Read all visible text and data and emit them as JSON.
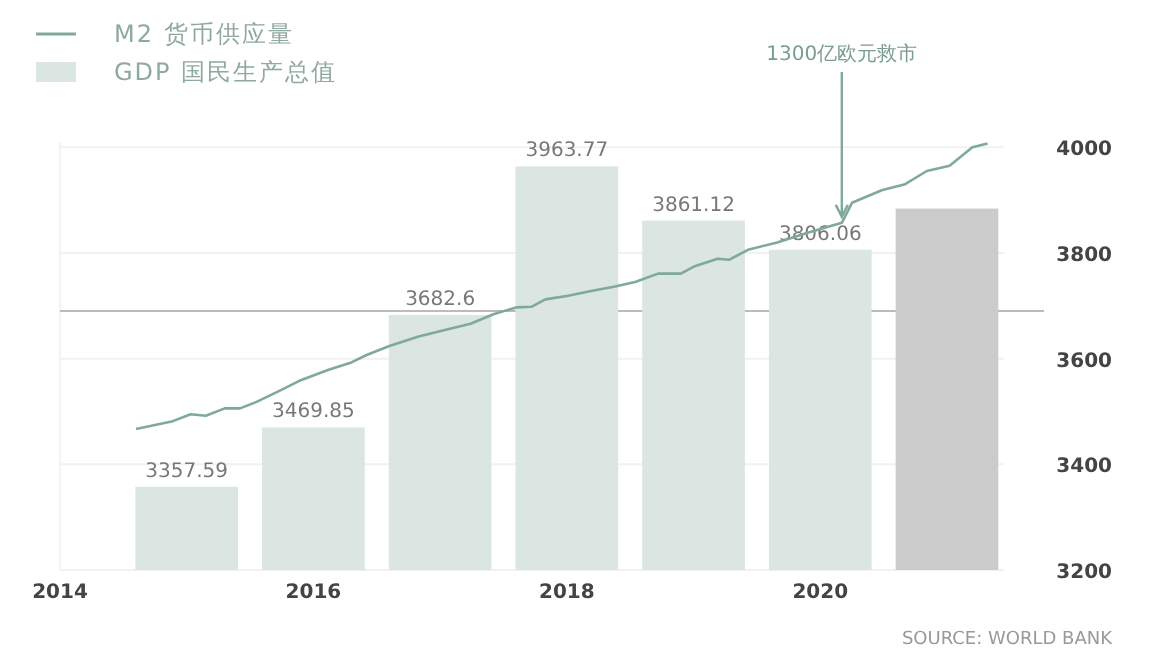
{
  "chart_data": {
    "type": "bar",
    "legend": "top left",
    "grid": "y",
    "x": [
      2015,
      2016,
      2017,
      2018,
      2019,
      2020,
      2021
    ],
    "xlim": [
      2014,
      2021.45
    ],
    "xticks": [
      2014,
      2016,
      2018,
      2020
    ],
    "ylim": [
      3200,
      4010
    ],
    "yticks": [
      3200,
      3400,
      3600,
      3800,
      4000
    ],
    "series": [
      {
        "name": "GDP 国民生产总值",
        "color": "#dbe5e1",
        "colors": [
          "#dbe5e1",
          "#dbe5e1",
          "#dbe5e1",
          "#dbe5e1",
          "#dbe5e1",
          "#dbe5e1",
          "#cbcbcb"
        ],
        "values": [
          3357.59,
          3469.85,
          3682.6,
          3963.77,
          3861.12,
          3806.06,
          3884
        ],
        "value_labels": [
          "3357.59",
          "3469.85",
          "3682.6",
          "3963.77",
          "3861.12",
          "3806.06",
          null
        ]
      },
      {
        "name": "M2 货币供应量",
        "type": "line",
        "color": "#7fa99a",
        "x": [
          2014.6,
          2014.88,
          2015.03,
          2015.15,
          2015.3,
          2015.42,
          2015.56,
          2015.74,
          2015.89,
          2016.12,
          2016.3,
          2016.42,
          2016.6,
          2016.83,
          2017.07,
          2017.24,
          2017.42,
          2017.6,
          2017.72,
          2017.83,
          2018.01,
          2018.19,
          2018.37,
          2018.54,
          2018.72,
          2018.9,
          2019.01,
          2019.19,
          2019.28,
          2019.43,
          2019.66,
          2019.9,
          2020.17,
          2020.25,
          2020.49,
          2020.67,
          2020.84,
          2021.02,
          2021.2,
          2021.32
        ],
        "values": [
          3467,
          3481,
          3495,
          3492,
          3506,
          3506,
          3519,
          3540,
          3558,
          3579,
          3593,
          3607,
          3624,
          3642,
          3656,
          3666,
          3684,
          3697,
          3698,
          3712,
          3719,
          3728,
          3736,
          3745,
          3761,
          3761,
          3775,
          3789,
          3787,
          3806,
          3820,
          3838,
          3857,
          3895,
          3919,
          3930,
          3955,
          3965,
          4000,
          4007
        ]
      }
    ],
    "ref_lines": [
      {
        "axis": "y",
        "value": 3690,
        "color": "#bbbbbb"
      }
    ],
    "annotations": [
      {
        "text": "1300亿欧元救市",
        "x": 2020.17,
        "y": 3857
      },
      "SOURCE: WORLD BANK"
    ]
  }
}
